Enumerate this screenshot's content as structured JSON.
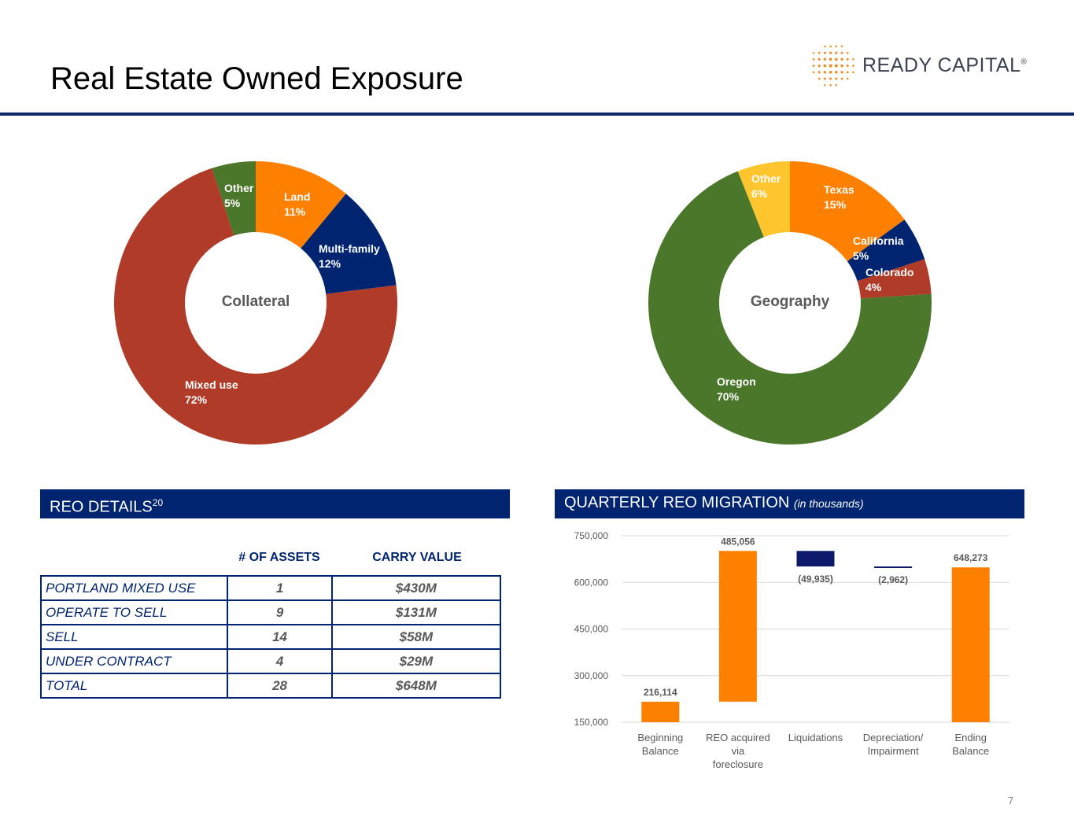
{
  "slide": {
    "title": "Real Estate Owned Exposure",
    "page_number": "7"
  },
  "logo": {
    "name": "READY CAPITAL",
    "mark": "®"
  },
  "colors": {
    "navy": "#012470",
    "orange": "#fe8000",
    "red": "#b03b28",
    "green": "#4a7729",
    "yellow": "#ffc52e",
    "dark_navy": "#0d1a6b",
    "grey": "#595959"
  },
  "chart_data": [
    {
      "type": "pie",
      "title": "Collateral",
      "center_label": "Collateral",
      "slices": [
        {
          "name": "Land",
          "label": "11%",
          "value": 11,
          "color": "#fe8000"
        },
        {
          "name": "Multi-family",
          "label": "12%",
          "value": 12,
          "color": "#012470"
        },
        {
          "name": "Mixed use",
          "label": "72%",
          "value": 72,
          "color": "#b03b28"
        },
        {
          "name": "Other",
          "label": "5%",
          "value": 5,
          "color": "#4a7729"
        }
      ]
    },
    {
      "type": "pie",
      "title": "Geography",
      "center_label": "Geography",
      "slices": [
        {
          "name": "Texas",
          "label": "15%",
          "value": 15,
          "color": "#fe8000"
        },
        {
          "name": "California",
          "label": "5%",
          "value": 5,
          "color": "#012470"
        },
        {
          "name": "Colorado",
          "label": "4%",
          "value": 4,
          "color": "#b03b28"
        },
        {
          "name": "Oregon",
          "label": "70%",
          "value": 70,
          "color": "#4a7729"
        },
        {
          "name": "Other",
          "label": "6%",
          "value": 6,
          "color": "#ffc52e"
        }
      ]
    },
    {
      "type": "bar",
      "subtype": "waterfall",
      "title": "QUARTERLY REO MIGRATION",
      "subtitle": "(in thousands)",
      "ylim": [
        150000,
        750000
      ],
      "yticks": [
        150000,
        300000,
        450000,
        600000,
        750000
      ],
      "ytick_labels": [
        "150,000",
        "300,000",
        "450,000",
        "600,000",
        "750,000"
      ],
      "categories": [
        [
          "Beginning",
          "Balance"
        ],
        [
          "REO acquired",
          "via",
          "foreclosure"
        ],
        [
          "Liquidations"
        ],
        [
          "Depreciation/",
          "Impairment"
        ],
        [
          "Ending",
          "Balance"
        ]
      ],
      "bars": [
        {
          "start": 150000,
          "end": 216114,
          "label": "216,114",
          "color": "#fe8000"
        },
        {
          "start": 216114,
          "end": 701170,
          "label": "485,056",
          "color": "#fe8000"
        },
        {
          "start": 701170,
          "end": 651235,
          "label": "(49,935)",
          "color": "#0d1a6b"
        },
        {
          "start": 651235,
          "end": 648273,
          "label": "(2,962)",
          "color": "#0d1a6b"
        },
        {
          "start": 150000,
          "end": 648273,
          "label": "648,273",
          "color": "#fe8000"
        }
      ]
    }
  ],
  "reo_details": {
    "heading": "REO DETAILS",
    "footnote": "20",
    "col_assets": "# OF ASSETS",
    "col_value": "CARRY VALUE",
    "rows": [
      {
        "name": "PORTLAND MIXED USE",
        "assets": "1",
        "value": "$430M"
      },
      {
        "name": "OPERATE TO SELL",
        "assets": "9",
        "value": "$131M"
      },
      {
        "name": "SELL",
        "assets": "14",
        "value": "$58M"
      },
      {
        "name": "UNDER CONTRACT",
        "assets": "4",
        "value": "$29M"
      },
      {
        "name": "TOTAL",
        "assets": "28",
        "value": "$648M"
      }
    ]
  },
  "migration": {
    "heading": "QUARTERLY REO MIGRATION",
    "sub": "(in thousands)"
  }
}
